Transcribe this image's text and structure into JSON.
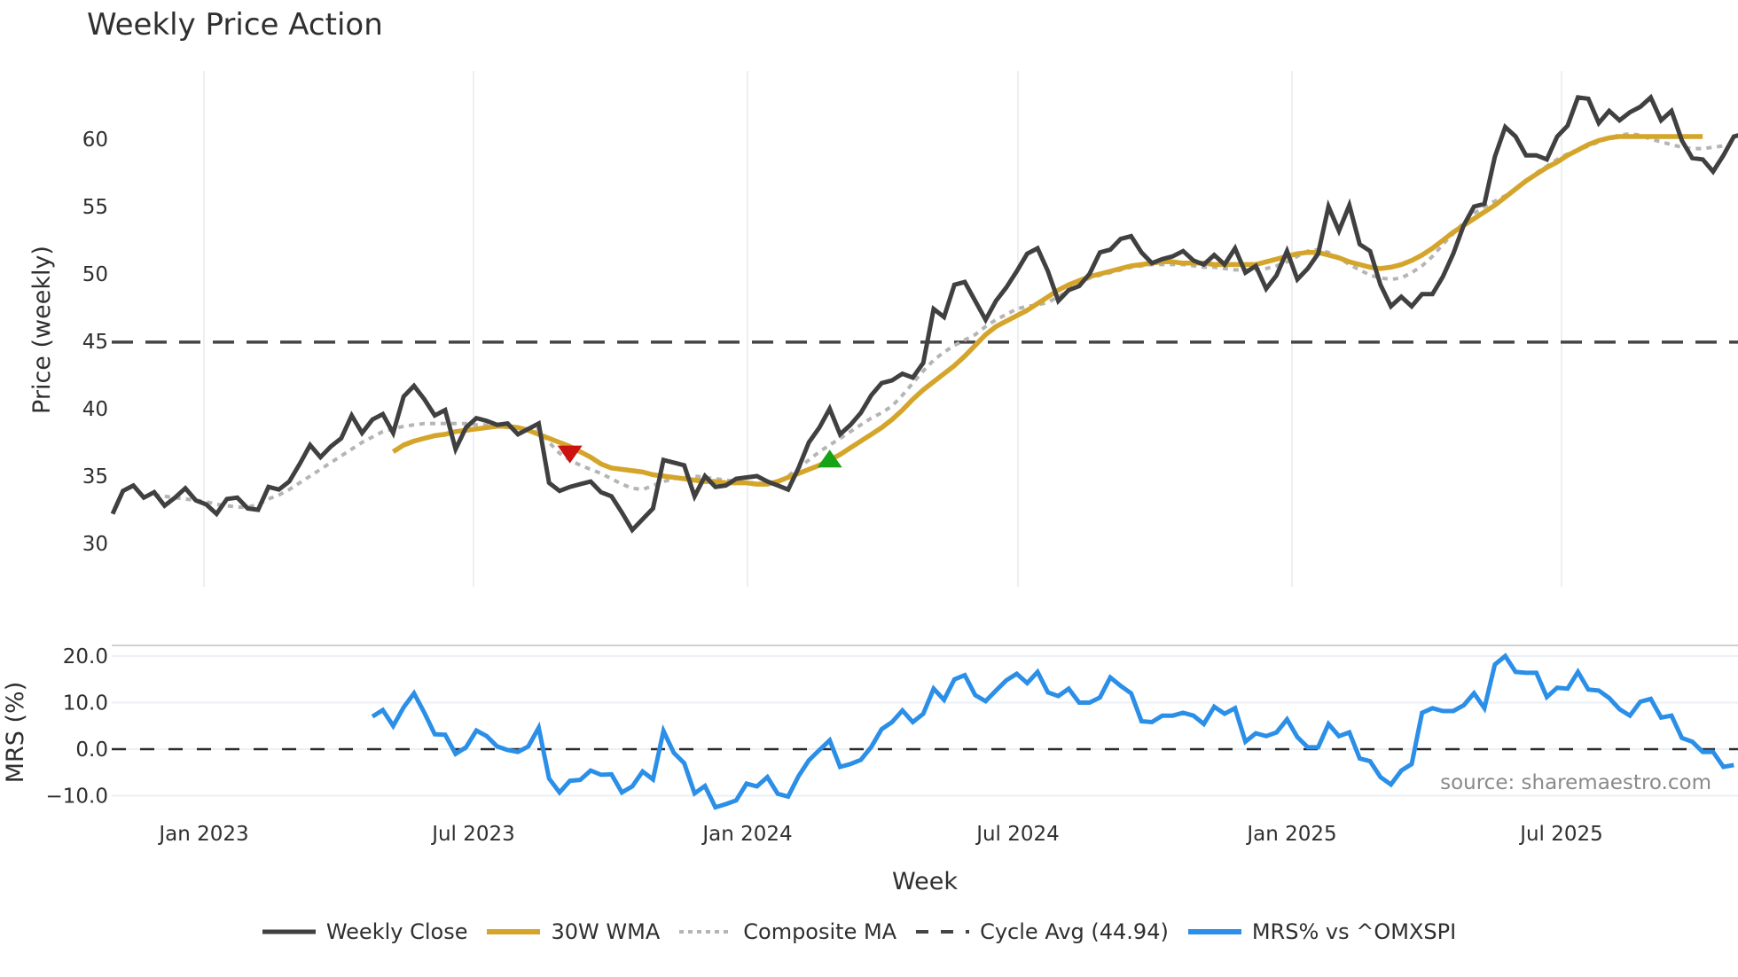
{
  "title": "Weekly Price Action",
  "source_note": "source: sharemaestro.com",
  "legend": [
    {
      "label": "Weekly Close",
      "color": "#404040",
      "style": "solid"
    },
    {
      "label": "30W WMA",
      "color": "#d4a52a",
      "style": "solid"
    },
    {
      "label": "Composite MA",
      "color": "#b5b5b5",
      "style": "dotted"
    },
    {
      "label": "Cycle Avg (44.94)",
      "color": "#454545",
      "style": "dashed"
    },
    {
      "label": "MRS% vs ^OMXSPI",
      "color": "#2b8fe8",
      "style": "solid"
    }
  ],
  "chart_data": [
    {
      "type": "line",
      "title": "Weekly Price Action",
      "xlabel": "Week",
      "ylabel": "Price (weekly)",
      "ylim": [
        29.5,
        64.5
      ],
      "yticks": [
        30,
        35,
        40,
        45,
        50,
        55,
        60
      ],
      "xticks": [
        "Jan 2023",
        "Jul 2023",
        "Jan 2024",
        "Jul 2024",
        "Jan 2025",
        "Jul 2025"
      ],
      "grid": "vertical",
      "x_start": "2022-11-07",
      "x_step": "1 week",
      "series": [
        {
          "name": "Weekly Close",
          "color": "#404040",
          "values": [
            32.2,
            33.9,
            34.3,
            33.4,
            33.8,
            32.8,
            33.4,
            34.1,
            33.2,
            32.9,
            32.2,
            33.3,
            33.4,
            32.6,
            32.5,
            34.2,
            34.0,
            34.6,
            35.9,
            37.3,
            36.4,
            37.2,
            37.8,
            39.5,
            38.2,
            39.2,
            39.6,
            38.2,
            40.9,
            41.7,
            40.7,
            39.5,
            39.9,
            37.0,
            38.6,
            39.3,
            39.1,
            38.8,
            38.9,
            38.1,
            38.5,
            38.9,
            34.5,
            33.9,
            34.2,
            34.4,
            34.6,
            33.8,
            33.5,
            32.3,
            31.0,
            31.8,
            32.6,
            36.2,
            36.0,
            35.8,
            33.5,
            35.0,
            34.2,
            34.3,
            34.8,
            34.9,
            35.0,
            34.6,
            34.3,
            34.0,
            35.6,
            37.5,
            38.6,
            40.0,
            38.1,
            38.8,
            39.7,
            41.0,
            41.9,
            42.1,
            42.6,
            42.3,
            43.4,
            47.4,
            46.8,
            49.2,
            49.4,
            48.0,
            46.6,
            48.0,
            49.0,
            50.2,
            51.5,
            51.9,
            50.2,
            48.0,
            48.8,
            49.1,
            50.0,
            51.6,
            51.8,
            52.6,
            52.8,
            51.6,
            50.8,
            51.1,
            51.3,
            51.7,
            51.0,
            50.7,
            51.4,
            50.7,
            51.9,
            50.1,
            50.6,
            48.9,
            49.9,
            51.7,
            49.6,
            50.4,
            51.5,
            55.0,
            53.2,
            55.1,
            52.2,
            51.7,
            49.2,
            47.6,
            48.3,
            47.6,
            48.5,
            48.5,
            49.8,
            51.5,
            53.6,
            55.0,
            55.2,
            58.7,
            60.9,
            60.2,
            58.8,
            58.8,
            58.5,
            60.2,
            61.0,
            63.1,
            63.0,
            61.2,
            62.1,
            61.4,
            62.0,
            62.4,
            63.1,
            61.4,
            62.1,
            59.9,
            58.6,
            58.5,
            57.6,
            58.8,
            60.2,
            60.4
          ]
        },
        {
          "name": "30W WMA",
          "color": "#d4a52a",
          "values": [
            null,
            null,
            null,
            null,
            null,
            null,
            null,
            null,
            null,
            null,
            null,
            null,
            null,
            null,
            null,
            null,
            null,
            null,
            null,
            null,
            null,
            null,
            null,
            null,
            null,
            null,
            null,
            36.8,
            37.3,
            37.6,
            37.8,
            38.0,
            38.1,
            38.3,
            38.4,
            38.5,
            38.6,
            38.7,
            38.7,
            38.6,
            38.4,
            38.1,
            37.8,
            37.5,
            37.2,
            36.8,
            36.4,
            35.9,
            35.6,
            35.5,
            35.4,
            35.3,
            35.1,
            35.0,
            34.9,
            34.8,
            34.7,
            34.6,
            34.6,
            34.5,
            34.5,
            34.5,
            34.4,
            34.4,
            34.6,
            34.9,
            35.2,
            35.5,
            35.8,
            36.2,
            36.6,
            37.1,
            37.6,
            38.1,
            38.6,
            39.2,
            39.9,
            40.7,
            41.4,
            42.0,
            42.6,
            43.2,
            43.9,
            44.7,
            45.5,
            46.1,
            46.5,
            46.9,
            47.3,
            47.8,
            48.3,
            48.8,
            49.2,
            49.5,
            49.8,
            50.0,
            50.2,
            50.4,
            50.6,
            50.7,
            50.8,
            50.9,
            50.9,
            50.8,
            50.8,
            50.8,
            50.7,
            50.7,
            50.7,
            50.7,
            50.7,
            50.9,
            51.1,
            51.3,
            51.5,
            51.6,
            51.6,
            51.4,
            51.2,
            50.9,
            50.7,
            50.5,
            50.4,
            50.5,
            50.7,
            51.0,
            51.4,
            51.9,
            52.5,
            53.1,
            53.6,
            54.1,
            54.6,
            55.1,
            55.7,
            56.3,
            56.9,
            57.4,
            57.9,
            58.3,
            58.8,
            59.2,
            59.6,
            59.9,
            60.1,
            60.2,
            60.2,
            60.2,
            60.2,
            60.2,
            60.2,
            60.2,
            60.2,
            60.2
          ]
        },
        {
          "name": "Composite MA",
          "color": "#b5b5b5",
          "values": [
            null,
            null,
            null,
            null,
            33.6,
            33.5,
            33.4,
            33.3,
            33.2,
            33.1,
            32.9,
            32.8,
            32.7,
            32.7,
            32.9,
            33.3,
            33.6,
            34.0,
            34.5,
            35.0,
            35.5,
            36.0,
            36.5,
            37.0,
            37.5,
            37.9,
            38.3,
            38.5,
            38.7,
            38.8,
            38.9,
            38.9,
            38.9,
            38.9,
            38.9,
            38.8,
            38.8,
            38.7,
            38.6,
            38.6,
            38.5,
            38.5,
            37.5,
            36.7,
            36.2,
            35.8,
            35.5,
            35.2,
            34.8,
            34.4,
            34.1,
            34.0,
            34.3,
            34.6,
            34.8,
            34.9,
            35.0,
            34.9,
            34.8,
            34.7,
            34.6,
            34.5,
            34.5,
            34.4,
            34.5,
            35.0,
            35.6,
            36.2,
            36.8,
            37.3,
            37.8,
            38.3,
            38.8,
            39.3,
            39.7,
            40.2,
            41.0,
            41.9,
            42.8,
            43.6,
            44.2,
            44.7,
            45.1,
            45.5,
            46.1,
            46.6,
            47.0,
            47.4,
            47.6,
            47.7,
            47.9,
            48.3,
            48.8,
            49.3,
            49.7,
            49.9,
            50.1,
            50.3,
            50.5,
            50.6,
            50.7,
            50.7,
            50.7,
            50.7,
            50.6,
            50.5,
            50.5,
            50.4,
            50.3,
            50.3,
            50.3,
            50.4,
            50.6,
            50.9,
            51.3,
            51.7,
            51.8,
            51.6,
            51.2,
            50.7,
            50.3,
            49.9,
            49.7,
            49.6,
            49.7,
            50.1,
            50.6,
            51.3,
            52.2,
            53.0,
            53.8,
            54.5,
            55.0,
            55.4,
            55.8,
            56.3,
            56.9,
            57.5,
            58.0,
            58.5,
            58.9,
            59.2,
            59.5,
            59.8,
            60.1,
            60.3,
            60.4,
            60.3,
            60.0,
            59.8,
            59.6,
            59.4,
            59.3,
            59.3,
            59.4,
            59.5
          ]
        },
        {
          "name": "Cycle Avg (44.94)",
          "color": "#454545",
          "constant": 44.94
        }
      ],
      "markers": [
        {
          "type": "sell",
          "shape": "triangle-down",
          "color": "#cc1111",
          "week_index": 44,
          "value": 36.6
        },
        {
          "type": "buy",
          "shape": "triangle-up",
          "color": "#17a317",
          "week_index": 69,
          "value": 36.3
        }
      ]
    },
    {
      "type": "line",
      "title": "",
      "xlabel": "Week",
      "ylabel": "MRS (%)",
      "ylim": [
        -13.5,
        22.5
      ],
      "yticks": [
        -10.0,
        0.0,
        10.0,
        20.0
      ],
      "zero_line": "dashed",
      "series": [
        {
          "name": "MRS% vs ^OMXSPI",
          "color": "#2b8fe8",
          "values": [
            null,
            null,
            null,
            null,
            null,
            null,
            null,
            null,
            null,
            null,
            null,
            null,
            null,
            null,
            null,
            null,
            null,
            null,
            null,
            null,
            null,
            null,
            null,
            null,
            null,
            7.0,
            8.4,
            5.0,
            9.0,
            12.0,
            7.8,
            3.2,
            3.1,
            -1.0,
            0.4,
            4.0,
            2.8,
            0.6,
            -0.2,
            -0.6,
            0.6,
            4.6,
            -6.3,
            -9.3,
            -6.8,
            -6.6,
            -4.6,
            -5.5,
            -5.4,
            -9.3,
            -8.0,
            -4.8,
            -6.5,
            3.9,
            -0.8,
            -3.0,
            -9.5,
            -7.9,
            -12.5,
            -11.8,
            -11.0,
            -7.4,
            -8.0,
            -6.0,
            -9.6,
            -10.2,
            -5.8,
            -2.4,
            -0.2,
            1.9,
            -3.8,
            -3.2,
            -2.3,
            0.5,
            4.3,
            5.8,
            8.3,
            5.8,
            7.6,
            13.0,
            10.6,
            15.0,
            15.9,
            11.6,
            10.3,
            12.6,
            14.8,
            16.2,
            14.2,
            16.6,
            12.2,
            11.4,
            13.0,
            10.0,
            10.0,
            11.1,
            15.4,
            13.6,
            12.0,
            6.0,
            5.8,
            7.2,
            7.2,
            7.8,
            7.2,
            5.4,
            9.1,
            7.6,
            8.8,
            1.6,
            3.4,
            2.8,
            3.6,
            6.4,
            2.6,
            0.4,
            0.4,
            5.4,
            2.8,
            3.6,
            -2.0,
            -2.6,
            -6.0,
            -7.6,
            -4.6,
            -3.2,
            7.8,
            8.8,
            8.2,
            8.2,
            9.4,
            12.0,
            8.8,
            18.2,
            20.0,
            16.6,
            16.4,
            16.4,
            11.2,
            13.2,
            13.0,
            16.6,
            12.8,
            12.6,
            11.0,
            8.6,
            7.2,
            10.2,
            10.8,
            6.8,
            7.2,
            2.4,
            1.6,
            -0.6,
            -0.6,
            -3.8,
            -3.4
          ]
        }
      ]
    }
  ]
}
